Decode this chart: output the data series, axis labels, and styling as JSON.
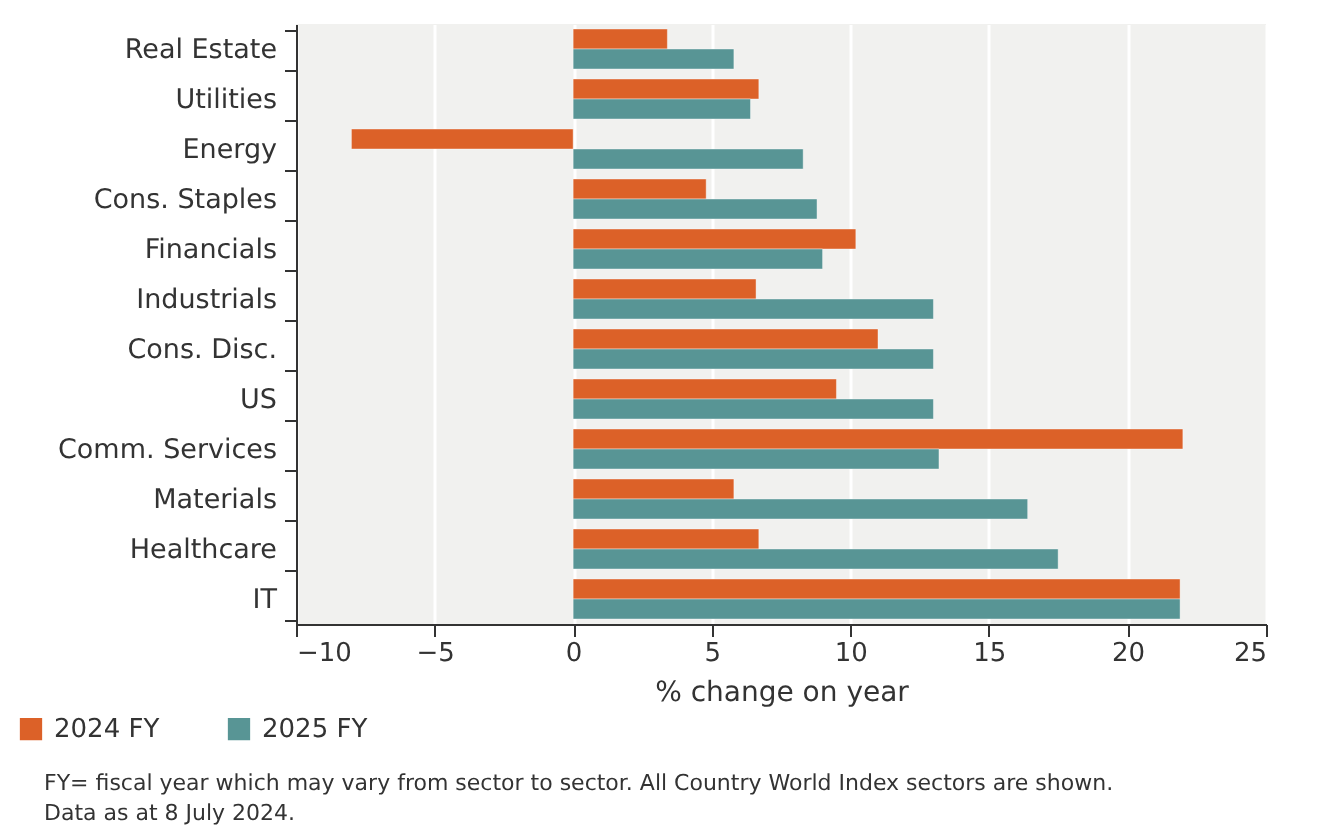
{
  "chart_data": {
    "type": "bar",
    "orientation": "horizontal",
    "xlabel": "% change on year",
    "categories": [
      "Real Estate",
      "Utilities",
      "Energy",
      "Cons. Staples",
      "Financials",
      "Industrials",
      "Cons. Disc.",
      "US",
      "Comm. Services",
      "Materials",
      "Healthcare",
      "IT"
    ],
    "series": [
      {
        "name": "2024 FY",
        "color": "#dc6128",
        "values": [
          3.4,
          6.7,
          -8.0,
          4.8,
          10.2,
          6.6,
          11.0,
          9.5,
          22.0,
          5.8,
          6.7,
          21.9
        ]
      },
      {
        "name": "2025 FY",
        "color": "#589595",
        "values": [
          5.8,
          6.4,
          8.3,
          8.8,
          9.0,
          13.0,
          13.0,
          13.0,
          13.2,
          16.4,
          17.5,
          21.9
        ]
      }
    ],
    "xlim": [
      -10,
      25
    ],
    "xticks": [
      -10,
      -5,
      0,
      5,
      10,
      15,
      20,
      25
    ],
    "grid": "x",
    "legend": "bottom left",
    "annotations": [
      "FY= fiscal year which may vary from sector to sector. All Country World Index sectors are shown.",
      "Data as at 8 July 2024."
    ]
  }
}
